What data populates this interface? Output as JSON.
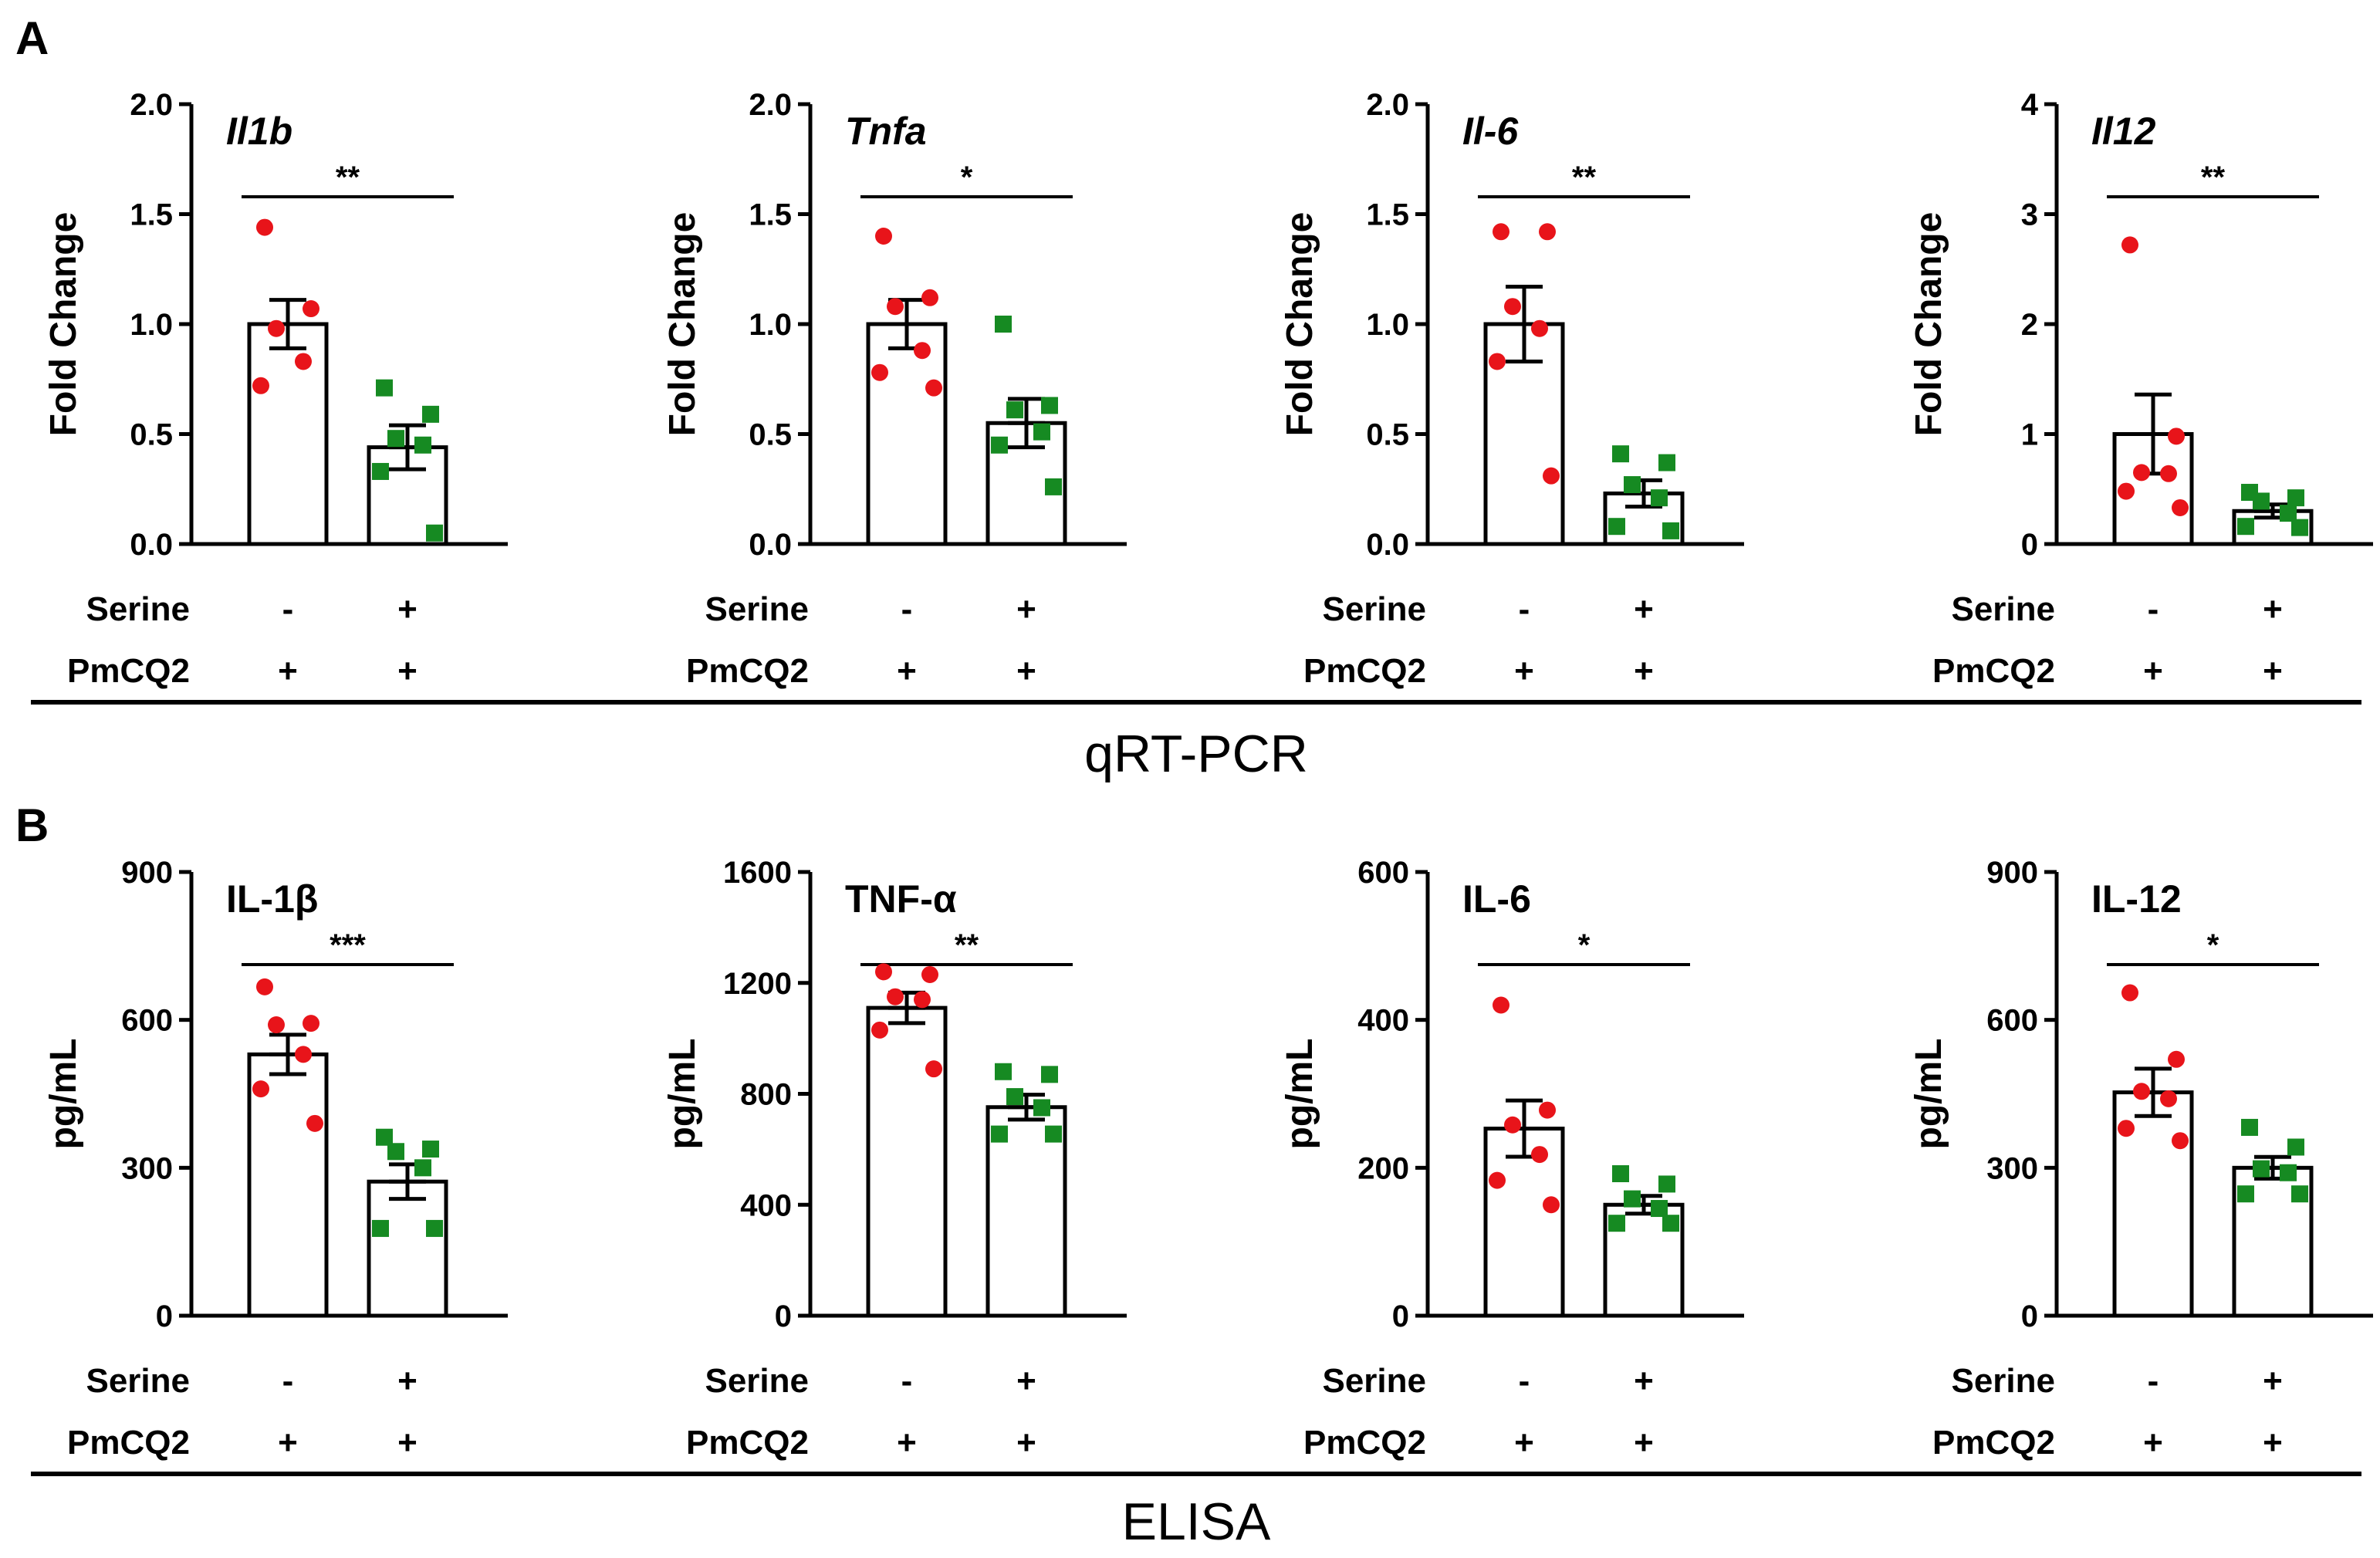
{
  "panels": [
    {
      "letter": "A",
      "section_label": "qRT-PCR"
    },
    {
      "letter": "B",
      "section_label": "ELISA"
    }
  ],
  "condition_rows": {
    "row1_label": "Serine",
    "row2_label": "PmCQ2",
    "row1_values": [
      "-",
      "+"
    ],
    "row2_values": [
      "+",
      "+"
    ]
  },
  "colors": {
    "group1": "#e8141a",
    "group2": "#168a22",
    "bar": "#ffffff",
    "axis": "#000000"
  },
  "chart_data": [
    {
      "type": "bar",
      "panel": "A",
      "title": "Il1b",
      "title_italic": true,
      "ylabel": "Fold Change",
      "ylim": [
        0,
        2.0
      ],
      "yticks": [
        "0.0",
        "0.5",
        "1.0",
        "1.5",
        "2.0"
      ],
      "ytick_values": [
        0,
        0.5,
        1.0,
        1.5,
        2.0
      ],
      "significance": "**",
      "categories": [
        "Serine - / PmCQ2 +",
        "Serine + / PmCQ2 +"
      ],
      "means": [
        1.0,
        0.44
      ],
      "sem": [
        0.11,
        0.1
      ],
      "points": [
        [
          1.44,
          1.07,
          0.98,
          0.83,
          0.72
        ],
        [
          0.71,
          0.59,
          0.48,
          0.45,
          0.33,
          0.05
        ]
      ]
    },
    {
      "type": "bar",
      "panel": "A",
      "title": "Tnfa",
      "title_italic": true,
      "ylabel": "Fold Change",
      "ylim": [
        0,
        2.0
      ],
      "yticks": [
        "0.0",
        "0.5",
        "1.0",
        "1.5",
        "2.0"
      ],
      "ytick_values": [
        0,
        0.5,
        1.0,
        1.5,
        2.0
      ],
      "significance": "*",
      "categories": [
        "Serine - / PmCQ2 +",
        "Serine + / PmCQ2 +"
      ],
      "means": [
        1.0,
        0.55
      ],
      "sem": [
        0.11,
        0.11
      ],
      "points": [
        [
          1.4,
          1.12,
          1.08,
          0.88,
          0.78,
          0.71
        ],
        [
          1.0,
          0.63,
          0.61,
          0.51,
          0.45,
          0.26
        ]
      ]
    },
    {
      "type": "bar",
      "panel": "A",
      "title": "Il-6",
      "title_italic": true,
      "ylabel": "Fold Change",
      "ylim": [
        0,
        2.0
      ],
      "yticks": [
        "0.0",
        "0.5",
        "1.0",
        "1.5",
        "2.0"
      ],
      "ytick_values": [
        0,
        0.5,
        1.0,
        1.5,
        2.0
      ],
      "significance": "**",
      "categories": [
        "Serine - / PmCQ2 +",
        "Serine + / PmCQ2 +"
      ],
      "means": [
        1.0,
        0.23
      ],
      "sem": [
        0.17,
        0.06
      ],
      "points": [
        [
          1.42,
          1.42,
          1.08,
          0.98,
          0.83,
          0.31
        ],
        [
          0.41,
          0.37,
          0.27,
          0.21,
          0.08,
          0.06
        ]
      ]
    },
    {
      "type": "bar",
      "panel": "A",
      "title": "Il12",
      "title_italic": true,
      "ylabel": "Fold Change",
      "ylim": [
        0,
        4
      ],
      "yticks": [
        "0",
        "1",
        "2",
        "3",
        "4"
      ],
      "ytick_values": [
        0,
        1,
        2,
        3,
        4
      ],
      "significance": "**",
      "categories": [
        "Serine - / PmCQ2 +",
        "Serine + / PmCQ2 +"
      ],
      "means": [
        1.0,
        0.3
      ],
      "sem": [
        0.36,
        0.06
      ],
      "points": [
        [
          2.72,
          0.98,
          0.65,
          0.64,
          0.48,
          0.33
        ],
        [
          0.47,
          0.42,
          0.39,
          0.28,
          0.16,
          0.15
        ]
      ]
    },
    {
      "type": "bar",
      "panel": "B",
      "title": "IL-1β",
      "title_italic": false,
      "ylabel": "pg/mL",
      "ylim": [
        0,
        900
      ],
      "yticks": [
        "0",
        "300",
        "600",
        "900"
      ],
      "ytick_values": [
        0,
        300,
        600,
        900
      ],
      "significance": "***",
      "categories": [
        "Serine - / PmCQ2 +",
        "Serine + / PmCQ2 +"
      ],
      "means": [
        530,
        272
      ],
      "sem": [
        40,
        35
      ],
      "points": [
        [
          667,
          593,
          590,
          530,
          460,
          390
        ],
        [
          362,
          338,
          333,
          300,
          177,
          177
        ]
      ]
    },
    {
      "type": "bar",
      "panel": "B",
      "title": "TNF-α",
      "title_italic": false,
      "ylabel": "pg/mL",
      "ylim": [
        0,
        1600
      ],
      "yticks": [
        "0",
        "400",
        "800",
        "1200",
        "1600"
      ],
      "ytick_values": [
        0,
        400,
        800,
        1200,
        1600
      ],
      "significance": "**",
      "categories": [
        "Serine - / PmCQ2 +",
        "Serine + / PmCQ2 +"
      ],
      "means": [
        1110,
        752
      ],
      "sem": [
        55,
        45
      ],
      "points": [
        [
          1240,
          1230,
          1150,
          1140,
          1030,
          890
        ],
        [
          880,
          870,
          790,
          750,
          655,
          655
        ]
      ]
    },
    {
      "type": "bar",
      "panel": "B",
      "title": "IL-6",
      "title_italic": false,
      "ylabel": "pg/mL",
      "ylim": [
        0,
        600
      ],
      "yticks": [
        "0",
        "200",
        "400",
        "600"
      ],
      "ytick_values": [
        0,
        200,
        400,
        600
      ],
      "significance": "*",
      "categories": [
        "Serine - / PmCQ2 +",
        "Serine + / PmCQ2 +"
      ],
      "means": [
        253,
        150
      ],
      "sem": [
        38,
        12
      ],
      "points": [
        [
          420,
          278,
          258,
          218,
          183,
          150
        ],
        [
          192,
          178,
          158,
          145,
          125,
          125
        ]
      ]
    },
    {
      "type": "bar",
      "panel": "B",
      "title": "IL-12",
      "title_italic": false,
      "ylabel": "pg/mL",
      "ylim": [
        0,
        900
      ],
      "yticks": [
        "0",
        "300",
        "600",
        "900"
      ],
      "ytick_values": [
        0,
        300,
        600,
        900
      ],
      "significance": "*",
      "categories": [
        "Serine - / PmCQ2 +",
        "Serine + / PmCQ2 +"
      ],
      "means": [
        453,
        300
      ],
      "sem": [
        48,
        22
      ],
      "points": [
        [
          655,
          520,
          455,
          440,
          380,
          355
        ],
        [
          382,
          342,
          298,
          290,
          247,
          247
        ]
      ]
    }
  ]
}
